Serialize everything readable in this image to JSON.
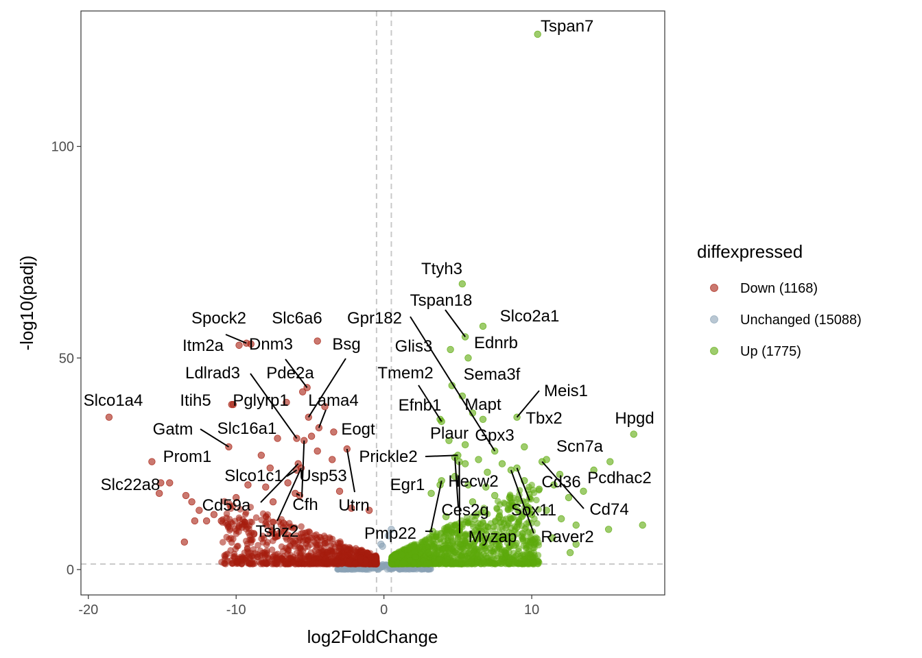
{
  "chart_data": {
    "type": "scatter",
    "title": "",
    "xlabel": "log2FoldChange",
    "ylabel": "-log10(padj)",
    "xlim": [
      -20.5,
      19
    ],
    "ylim": [
      -6,
      132
    ],
    "x_ticks": [
      -20,
      -10,
      0,
      10
    ],
    "y_ticks": [
      0,
      50,
      100
    ],
    "x_tick_labels": [
      "-20",
      "-10",
      "0",
      "10"
    ],
    "y_tick_labels": [
      "0",
      "50",
      "100"
    ],
    "grid": false,
    "thresholds": {
      "x": [
        -0.5,
        0.5
      ],
      "y": 1.3
    },
    "legend": {
      "title": "diffexpressed",
      "placement": "right",
      "entries": [
        {
          "key": "down",
          "label": "Down (1168)",
          "color": "#A61E0F"
        },
        {
          "key": "unchanged",
          "label": "Unchanged (15088)",
          "color": "#8AA2B5"
        },
        {
          "key": "up",
          "label": "Up (1775)",
          "color": "#5DAA0C"
        }
      ]
    },
    "labeled_genes": [
      {
        "gene": "Tspan7",
        "x": 10.4,
        "y": 126.5,
        "group": "up"
      },
      {
        "gene": "Ttyh3",
        "x": 5.3,
        "y": 67.5,
        "group": "up"
      },
      {
        "gene": "Tspan18",
        "x": 5.5,
        "y": 55.0,
        "group": "up"
      },
      {
        "gene": "Slco2a1",
        "x": 6.7,
        "y": 57.5,
        "group": "up"
      },
      {
        "gene": "Ednrb",
        "x": 5.7,
        "y": 50.0,
        "group": "up"
      },
      {
        "gene": "Gpr182",
        "x": 7.5,
        "y": 28.0,
        "group": "up"
      },
      {
        "gene": "Glis3",
        "x": 4.5,
        "y": 52.0,
        "group": "up"
      },
      {
        "gene": "Sema3f",
        "x": 4.6,
        "y": 43.5,
        "group": "up"
      },
      {
        "gene": "Tmem2",
        "x": 3.9,
        "y": 35.0,
        "group": "up"
      },
      {
        "gene": "Efnb1",
        "x": 3.8,
        "y": 35.5,
        "group": "up"
      },
      {
        "gene": "Mapt",
        "x": 6.7,
        "y": 35.5,
        "group": "up"
      },
      {
        "gene": "Meis1",
        "x": 9.0,
        "y": 36.0,
        "group": "up"
      },
      {
        "gene": "Tbx2",
        "x": 9.5,
        "y": 29.0,
        "group": "up"
      },
      {
        "gene": "Hpgd",
        "x": 16.9,
        "y": 32.0,
        "group": "up"
      },
      {
        "gene": "Plaur",
        "x": 4.4,
        "y": 30.5,
        "group": "up"
      },
      {
        "gene": "Gpx3",
        "x": 5.5,
        "y": 29.5,
        "group": "up"
      },
      {
        "gene": "Scn7a",
        "x": 11.0,
        "y": 26.0,
        "group": "up"
      },
      {
        "gene": "Prickle2",
        "x": 5.0,
        "y": 27.0,
        "group": "up"
      },
      {
        "gene": "Egr1",
        "x": 3.3,
        "y": 9.0,
        "group": "up"
      },
      {
        "gene": "Hecw2",
        "x": 5.5,
        "y": 25.0,
        "group": "up"
      },
      {
        "gene": "Cd36",
        "x": 11.9,
        "y": 22.5,
        "group": "up"
      },
      {
        "gene": "Pcdhac2",
        "x": 13.5,
        "y": 18.5,
        "group": "up"
      },
      {
        "gene": "Ces2g",
        "x": 4.8,
        "y": 26.5,
        "group": "up"
      },
      {
        "gene": "Sox11",
        "x": 9.0,
        "y": 24.0,
        "group": "up"
      },
      {
        "gene": "Cd74",
        "x": 10.7,
        "y": 25.5,
        "group": "up"
      },
      {
        "gene": "Myzap",
        "x": 5.1,
        "y": 25.5,
        "group": "up"
      },
      {
        "gene": "Raver2",
        "x": 8.6,
        "y": 23.5,
        "group": "up"
      },
      {
        "gene": "Pmp22",
        "x": 3.9,
        "y": 21.0,
        "group": "up"
      },
      {
        "gene": "Spock2",
        "x": -9.3,
        "y": 53.5,
        "group": "down"
      },
      {
        "gene": "Slc6a6",
        "x": -4.5,
        "y": 54.0,
        "group": "down"
      },
      {
        "gene": "Itm2a",
        "x": -9.8,
        "y": 53.0,
        "group": "down"
      },
      {
        "gene": "Dnm3",
        "x": -5.2,
        "y": 43.0,
        "group": "down"
      },
      {
        "gene": "Bsg",
        "x": -5.1,
        "y": 36.0,
        "group": "down"
      },
      {
        "gene": "Ldlrad3",
        "x": -5.9,
        "y": 31.0,
        "group": "down"
      },
      {
        "gene": "Pde2a",
        "x": -5.5,
        "y": 42.0,
        "group": "down"
      },
      {
        "gene": "Slco1a4",
        "x": -18.6,
        "y": 36.0,
        "group": "down"
      },
      {
        "gene": "Itih5",
        "x": -10.2,
        "y": 39.0,
        "group": "down"
      },
      {
        "gene": "Pglyrp1",
        "x": -6.6,
        "y": 39.5,
        "group": "down"
      },
      {
        "gene": "Lama4",
        "x": -4.4,
        "y": 33.5,
        "group": "down"
      },
      {
        "gene": "Gatm",
        "x": -10.5,
        "y": 29.0,
        "group": "down"
      },
      {
        "gene": "Slc16a1",
        "x": -5.4,
        "y": 30.5,
        "group": "down"
      },
      {
        "gene": "Eogt",
        "x": -3.4,
        "y": 32.5,
        "group": "down"
      },
      {
        "gene": "Prom1",
        "x": -15.7,
        "y": 25.5,
        "group": "down"
      },
      {
        "gene": "Slco1c1",
        "x": -5.8,
        "y": 25.0,
        "group": "down"
      },
      {
        "gene": "Usp53",
        "x": -4.5,
        "y": 28.0,
        "group": "down"
      },
      {
        "gene": "Slc22a8",
        "x": -15.1,
        "y": 20.5,
        "group": "down"
      },
      {
        "gene": "Cd59a",
        "x": -5.9,
        "y": 23.5,
        "group": "down"
      },
      {
        "gene": "Cfh",
        "x": -5.7,
        "y": 17.5,
        "group": "down"
      },
      {
        "gene": "Utrn",
        "x": -2.5,
        "y": 28.5,
        "group": "down"
      },
      {
        "gene": "Tshz2",
        "x": -5.6,
        "y": 24.0,
        "group": "down"
      }
    ],
    "extra_points": [
      {
        "x": -9.0,
        "y": 53.3,
        "group": "down"
      },
      {
        "x": -10.3,
        "y": 39.0,
        "group": "down"
      },
      {
        "x": -3.5,
        "y": 26.0,
        "group": "down"
      },
      {
        "x": -8.3,
        "y": 27.0,
        "group": "down"
      },
      {
        "x": -7.7,
        "y": 24.0,
        "group": "down"
      },
      {
        "x": -15.2,
        "y": 18.0,
        "group": "down"
      },
      {
        "x": -14.5,
        "y": 20.5,
        "group": "down"
      },
      {
        "x": -13.5,
        "y": 6.5,
        "group": "down"
      },
      {
        "x": -12.5,
        "y": 14.0,
        "group": "down"
      },
      {
        "x": -12.0,
        "y": 11.5,
        "group": "down"
      },
      {
        "x": -11.0,
        "y": 11.5,
        "group": "down"
      },
      {
        "x": -10.0,
        "y": 17.0,
        "group": "down"
      },
      {
        "x": -9.2,
        "y": 20.0,
        "group": "down"
      },
      {
        "x": -8.0,
        "y": 19.5,
        "group": "down"
      },
      {
        "x": -7.5,
        "y": 16.0,
        "group": "down"
      },
      {
        "x": -6.5,
        "y": 20.5,
        "group": "down"
      },
      {
        "x": -6.0,
        "y": 18.0,
        "group": "down"
      },
      {
        "x": -1.0,
        "y": 14.0,
        "group": "down"
      },
      {
        "x": -13.0,
        "y": 16.0,
        "group": "down"
      },
      {
        "x": -13.4,
        "y": 17.5,
        "group": "down"
      },
      {
        "x": -12.8,
        "y": 11.5,
        "group": "down"
      },
      {
        "x": -11.5,
        "y": 13.0,
        "group": "down"
      },
      {
        "x": -4.0,
        "y": 38.5,
        "group": "down"
      },
      {
        "x": -7.2,
        "y": 31.0,
        "group": "down"
      },
      {
        "x": -4.9,
        "y": 31.5,
        "group": "down"
      },
      {
        "x": -3.0,
        "y": 18.5,
        "group": "down"
      },
      {
        "x": -2.2,
        "y": 14.5,
        "group": "down"
      },
      {
        "x": -9.6,
        "y": 10.0,
        "group": "down"
      },
      {
        "x": -8.8,
        "y": 8.5,
        "group": "down"
      },
      {
        "x": -6.8,
        "y": 11.0,
        "group": "down"
      },
      {
        "x": 6.0,
        "y": 37.0,
        "group": "up"
      },
      {
        "x": 5.3,
        "y": 41.0,
        "group": "up"
      },
      {
        "x": 6.4,
        "y": 26.0,
        "group": "up"
      },
      {
        "x": 7.0,
        "y": 23.0,
        "group": "up"
      },
      {
        "x": 8.0,
        "y": 25.0,
        "group": "up"
      },
      {
        "x": 9.5,
        "y": 21.0,
        "group": "up"
      },
      {
        "x": 10.5,
        "y": 19.0,
        "group": "up"
      },
      {
        "x": 11.5,
        "y": 20.0,
        "group": "up"
      },
      {
        "x": 12.5,
        "y": 17.0,
        "group": "up"
      },
      {
        "x": 14.2,
        "y": 23.5,
        "group": "up"
      },
      {
        "x": 15.3,
        "y": 25.5,
        "group": "up"
      },
      {
        "x": 17.5,
        "y": 10.5,
        "group": "up"
      },
      {
        "x": 15.2,
        "y": 9.5,
        "group": "up"
      },
      {
        "x": 12.6,
        "y": 4.0,
        "group": "up"
      },
      {
        "x": 11.0,
        "y": 14.0,
        "group": "up"
      },
      {
        "x": 12.0,
        "y": 12.0,
        "group": "up"
      },
      {
        "x": 13.0,
        "y": 10.5,
        "group": "up"
      },
      {
        "x": 13.0,
        "y": 6.0,
        "group": "up"
      },
      {
        "x": 10.0,
        "y": 13.0,
        "group": "up"
      },
      {
        "x": 9.0,
        "y": 10.0,
        "group": "up"
      },
      {
        "x": 8.5,
        "y": 17.0,
        "group": "up"
      },
      {
        "x": 7.5,
        "y": 17.5,
        "group": "up"
      },
      {
        "x": 6.0,
        "y": 16.0,
        "group": "up"
      },
      {
        "x": 4.8,
        "y": 22.0,
        "group": "up"
      },
      {
        "x": 3.8,
        "y": 20.0,
        "group": "up"
      },
      {
        "x": 3.2,
        "y": 18.0,
        "group": "up"
      },
      {
        "x": 7.8,
        "y": 12.5,
        "group": "up"
      },
      {
        "x": 11.4,
        "y": 7.5,
        "group": "up"
      },
      {
        "x": 9.9,
        "y": 6.5,
        "group": "up"
      },
      {
        "x": 8.2,
        "y": 8.0,
        "group": "up"
      },
      {
        "x": 6.6,
        "y": 9.0,
        "group": "up"
      },
      {
        "x": 4.2,
        "y": 12.5,
        "group": "up"
      },
      {
        "x": 5.7,
        "y": 20.0,
        "group": "up"
      },
      {
        "x": 6.9,
        "y": 19.5,
        "group": "up"
      },
      {
        "x": 0.5,
        "y": 9.5,
        "group": "unchanged"
      },
      {
        "x": 0.3,
        "y": 8.0,
        "group": "unchanged"
      },
      {
        "x": -0.2,
        "y": 6.0,
        "group": "unchanged"
      },
      {
        "x": -0.1,
        "y": 5.5,
        "group": "unchanged"
      }
    ]
  }
}
